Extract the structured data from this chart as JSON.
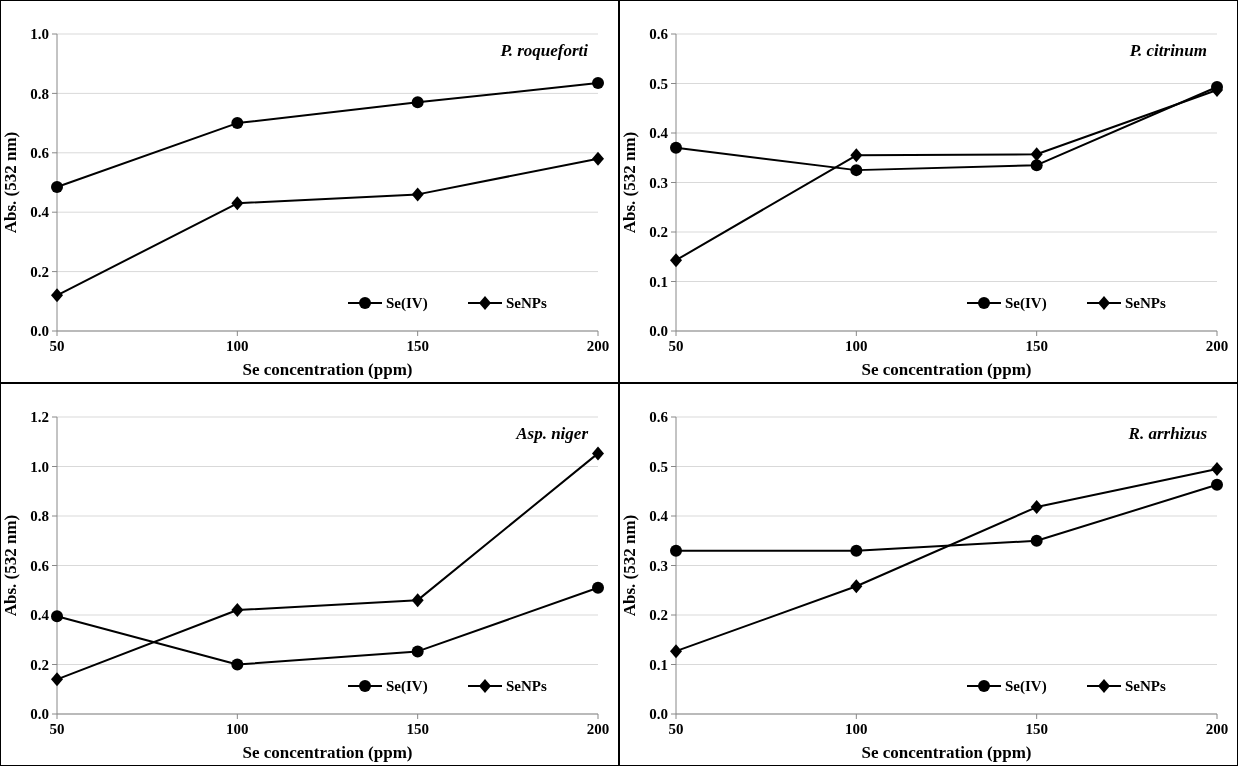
{
  "chart_data": [
    {
      "type": "line",
      "title": "P. roqueforti",
      "xlabel": "Se concentration (ppm)",
      "ylabel": "Abs. (532 nm)",
      "x": [
        50,
        100,
        150,
        200
      ],
      "xlim": [
        50,
        200
      ],
      "xticks": [
        50,
        100,
        150,
        200
      ],
      "ylim": [
        0,
        1
      ],
      "yticks": [
        {
          "value": 0,
          "label": "0.0"
        },
        {
          "value": 0.2,
          "label": "0.2"
        },
        {
          "value": 0.4,
          "label": "0.4"
        },
        {
          "value": 0.6,
          "label": "0.6"
        },
        {
          "value": 0.8,
          "label": "0.8"
        },
        {
          "value": 1,
          "label": "1.0"
        }
      ],
      "grid": "y",
      "legend": "bottom right",
      "series": [
        {
          "name": "Se(IV)",
          "color": "#000000",
          "marker": "circle",
          "values": [
            0.485,
            0.7,
            0.77,
            0.835
          ]
        },
        {
          "name": "SeNPs",
          "color": "#000000",
          "marker": "diamond",
          "values": [
            0.12,
            0.43,
            0.46,
            0.58
          ]
        }
      ]
    },
    {
      "type": "line",
      "title": "P. citrinum",
      "xlabel": "Se concentration (ppm)",
      "ylabel": "Abs. (532 nm)",
      "x": [
        50,
        100,
        150,
        200
      ],
      "xlim": [
        50,
        200
      ],
      "xticks": [
        50,
        100,
        150,
        200
      ],
      "ylim": [
        0,
        0.6
      ],
      "yticks": [
        {
          "value": 0,
          "label": "0.0"
        },
        0.1,
        0.2,
        0.3,
        0.4,
        0.5,
        0.6
      ],
      "grid": "y",
      "legend": "bottom right",
      "series": [
        {
          "name": "Se(IV)",
          "color": "#000000",
          "marker": "circle",
          "values": [
            0.37,
            0.325,
            0.335,
            0.493
          ]
        },
        {
          "name": "SeNPs",
          "color": "#000000",
          "marker": "diamond",
          "values": [
            0.143,
            0.355,
            0.357,
            0.487
          ]
        }
      ]
    },
    {
      "type": "line",
      "title": "Asp. niger",
      "xlabel": "Se concentration (ppm)",
      "ylabel": "Abs. (532 nm)",
      "x": [
        50,
        100,
        150,
        200
      ],
      "xlim": [
        50,
        200
      ],
      "xticks": [
        50,
        100,
        150,
        200
      ],
      "ylim": [
        0,
        1.2
      ],
      "yticks": [
        {
          "value": 0,
          "label": "0.0"
        },
        0.2,
        0.4,
        0.6,
        0.8,
        {
          "value": 1,
          "label": "1.0"
        },
        1.2
      ],
      "grid": "y",
      "legend": "bottom right",
      "series": [
        {
          "name": "Se(IV)",
          "color": "#000000",
          "marker": "circle",
          "values": [
            0.395,
            0.2,
            0.253,
            0.51
          ]
        },
        {
          "name": "SeNPs",
          "color": "#000000",
          "marker": "diamond",
          "values": [
            0.14,
            0.42,
            0.46,
            1.053
          ]
        }
      ]
    },
    {
      "type": "line",
      "title": "R. arrhizus",
      "xlabel": "Se concentration (ppm)",
      "ylabel": "Abs. (532 nm)",
      "x": [
        50,
        100,
        150,
        200
      ],
      "xlim": [
        50,
        200
      ],
      "xticks": [
        50,
        100,
        150,
        200
      ],
      "ylim": [
        0,
        0.6
      ],
      "yticks": [
        {
          "value": 0,
          "label": "0.0"
        },
        0.1,
        0.2,
        0.3,
        0.4,
        0.5,
        0.6
      ],
      "grid": "y",
      "legend": "bottom right",
      "series": [
        {
          "name": "Se(IV)",
          "color": "#000000",
          "marker": "circle",
          "values": [
            0.33,
            0.33,
            0.35,
            0.463
          ]
        },
        {
          "name": "SeNPs",
          "color": "#000000",
          "marker": "diamond",
          "values": [
            0.127,
            0.258,
            0.418,
            0.495
          ]
        }
      ]
    }
  ]
}
